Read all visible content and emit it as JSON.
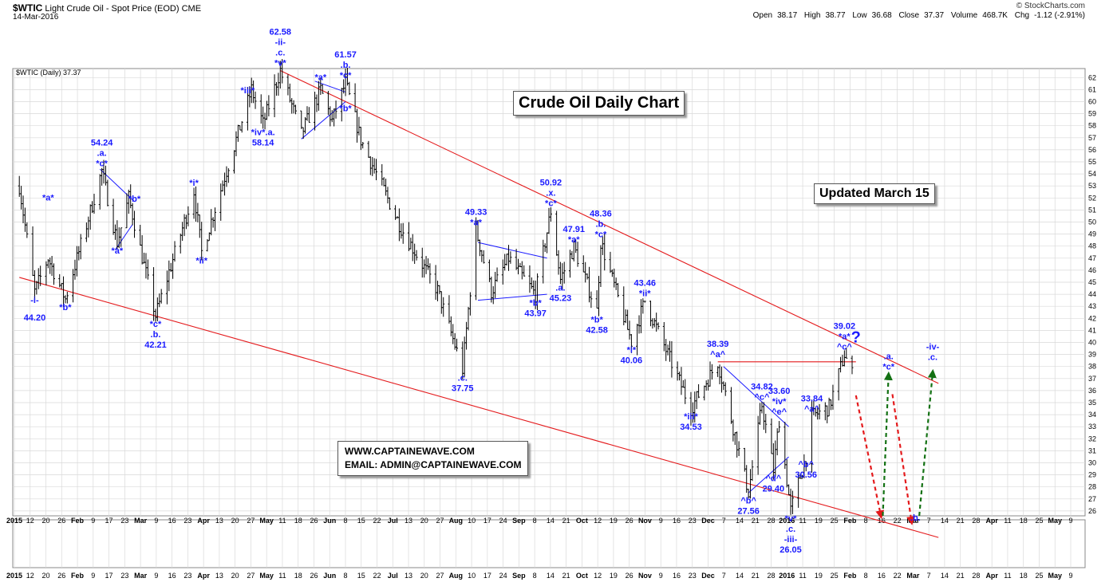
{
  "header": {
    "symbol": "$WTIC",
    "description": "Light Crude Oil - Spot Price (EOD)",
    "exchange": "CME",
    "date": "14-Mar-2016",
    "copyright": "© StockCharts.com",
    "open_label": "Open",
    "open": "38.17",
    "high_label": "High",
    "high": "38.77",
    "low_label": "Low",
    "low": "36.68",
    "close_label": "Close",
    "close": "37.37",
    "volume_label": "Volume",
    "volume": "468.7K",
    "chg_label": "Chg",
    "chg": "-1.12 (-2.91%)"
  },
  "legend": "$WTIC (Daily) 37.37",
  "title_box": "Crude Oil Daily Chart",
  "updated_box": "Updated March 15",
  "contact": {
    "website": "WWW.CAPTAINEWAVE.COM",
    "email": "EMAIL: ADMIN@CAPTAINEWAVE.COM"
  },
  "colors": {
    "bars": "#000000",
    "labels": "#1a1aff",
    "channel": "#e41a1c",
    "triangle": "#1a1aff",
    "projection_down": "#e41a1c",
    "projection_up": "#137113",
    "grid": "#d9d9d9"
  },
  "chart_data": {
    "type": "ohlc",
    "ylim": [
      26,
      62
    ],
    "yticks": [
      26,
      27,
      28,
      29,
      30,
      31,
      32,
      33,
      34,
      35,
      36,
      37,
      38,
      39,
      40,
      41,
      42,
      43,
      44,
      45,
      46,
      47,
      48,
      49,
      50,
      51,
      52,
      53,
      54,
      55,
      56,
      57,
      58,
      59,
      60,
      61,
      62
    ],
    "xticks": [
      "2015",
      "12",
      "20",
      "26",
      "Feb",
      "9",
      "17",
      "23",
      "Mar",
      "9",
      "16",
      "23",
      "Apr",
      "13",
      "20",
      "27",
      "May",
      "11",
      "18",
      "26",
      "Jun",
      "8",
      "15",
      "22",
      "Jul",
      "13",
      "20",
      "27",
      "Aug",
      "10",
      "17",
      "24",
      "Sep",
      "8",
      "14",
      "21",
      "Oct",
      "12",
      "19",
      "26",
      "Nov",
      "9",
      "16",
      "23",
      "Dec",
      "7",
      "14",
      "21",
      "28",
      "2016",
      "11",
      "19",
      "25",
      "Feb",
      "8",
      "16",
      "22",
      "Mar",
      "7",
      "14",
      "21",
      "28",
      "Apr",
      "11",
      "18",
      "25",
      "May",
      "9"
    ],
    "pivots": [
      {
        "date": "2015-01-05",
        "price": 53.0
      },
      {
        "date": "2015-01-13",
        "price": 44.2
      },
      {
        "date": "2015-01-20",
        "price": 47.0
      },
      {
        "date": "2015-01-29",
        "price": 43.6
      },
      {
        "date": "2015-02-17",
        "price": 54.24
      },
      {
        "date": "2015-02-25",
        "price": 48.3
      },
      {
        "date": "2015-03-03",
        "price": 52.0
      },
      {
        "date": "2015-03-17",
        "price": 42.21
      },
      {
        "date": "2015-04-06",
        "price": 52.6
      },
      {
        "date": "2015-04-10",
        "price": 47.5
      },
      {
        "date": "2015-05-06",
        "price": 61.0
      },
      {
        "date": "2015-05-12",
        "price": 58.14
      },
      {
        "date": "2015-05-21",
        "price": 62.58
      },
      {
        "date": "2015-06-01",
        "price": 57.3
      },
      {
        "date": "2015-06-11",
        "price": 61.0
      },
      {
        "date": "2015-06-17",
        "price": 58.4
      },
      {
        "date": "2015-06-24",
        "price": 61.57
      },
      {
        "date": "2015-07-02",
        "price": 56.8
      },
      {
        "date": "2015-07-23",
        "price": 49.5
      },
      {
        "date": "2015-08-11",
        "price": 44.3
      },
      {
        "date": "2015-08-24",
        "price": 37.75
      },
      {
        "date": "2015-08-31",
        "price": 49.33
      },
      {
        "date": "2015-09-08",
        "price": 44.2
      },
      {
        "date": "2015-09-17",
        "price": 47.0
      },
      {
        "date": "2015-10-01",
        "price": 43.97
      },
      {
        "date": "2015-10-09",
        "price": 50.92
      },
      {
        "date": "2015-10-14",
        "price": 45.23
      },
      {
        "date": "2015-10-21",
        "price": 47.91
      },
      {
        "date": "2015-11-02",
        "price": 42.58
      },
      {
        "date": "2015-11-04",
        "price": 48.36
      },
      {
        "date": "2015-11-20",
        "price": 40.06
      },
      {
        "date": "2015-11-27",
        "price": 43.46
      },
      {
        "date": "2015-12-21",
        "price": 34.53
      },
      {
        "date": "2016-01-04",
        "price": 38.39
      },
      {
        "date": "2016-01-20",
        "price": 27.56
      },
      {
        "date": "2016-01-27",
        "price": 34.82
      },
      {
        "date": "2016-02-02",
        "price": 29.4
      },
      {
        "date": "2016-02-05",
        "price": 33.6
      },
      {
        "date": "2016-02-11",
        "price": 26.05
      },
      {
        "date": "2016-02-19",
        "price": 30.56
      },
      {
        "date": "2016-02-22",
        "price": 33.84
      },
      {
        "date": "2016-03-02",
        "price": 34.6
      },
      {
        "date": "2016-03-10",
        "price": 39.02
      },
      {
        "date": "2016-03-14",
        "price": 37.37
      }
    ],
    "channel_upper": [
      {
        "date": "2015-05-21",
        "price": 62.58
      },
      {
        "date": "2016-04-28",
        "price": 36.6
      }
    ],
    "channel_lower": [
      {
        "date": "2015-01-05",
        "price": 45.4
      },
      {
        "date": "2016-04-28",
        "price": 23.8
      }
    ],
    "triangles": [
      {
        "upper": [
          {
            "date": "2015-02-16",
            "price": 54.4
          },
          {
            "date": "2015-03-06",
            "price": 51.7
          }
        ],
        "lower": [
          {
            "date": "2015-02-24",
            "price": 47.7
          },
          {
            "date": "2015-03-05",
            "price": 49.8
          }
        ]
      },
      {
        "upper": [
          {
            "date": "2015-06-08",
            "price": 61.7
          },
          {
            "date": "2015-06-24",
            "price": 60.8
          }
        ],
        "lower": [
          {
            "date": "2015-06-01",
            "price": 56.9
          },
          {
            "date": "2015-06-24",
            "price": 60.0
          }
        ]
      },
      {
        "upper": [
          {
            "date": "2015-09-01",
            "price": 48.3
          },
          {
            "date": "2015-10-07",
            "price": 47.0
          }
        ],
        "lower": [
          {
            "date": "2015-09-01",
            "price": 43.5
          },
          {
            "date": "2015-10-07",
            "price": 44.0
          }
        ]
      },
      {
        "upper": [
          {
            "date": "2016-01-07",
            "price": 38.0
          },
          {
            "date": "2016-02-10",
            "price": 33.0
          }
        ],
        "lower": [
          {
            "date": "2016-01-20",
            "price": 27.5
          },
          {
            "date": "2016-02-10",
            "price": 30.5
          }
        ]
      }
    ],
    "resistance": {
      "from": "2016-01-04",
      "to": "2016-03-16",
      "price": 38.39
    },
    "projection": [
      {
        "from": {
          "date": "2016-03-16",
          "price": 35.6
        },
        "to": {
          "date": "2016-03-29",
          "price": 25.6
        },
        "dir": "down"
      },
      {
        "from": {
          "date": "2016-03-30",
          "price": 25.6
        },
        "to": {
          "date": "2016-04-02",
          "price": 37.3
        },
        "dir": "up"
      },
      {
        "from": {
          "date": "2016-04-04",
          "price": 35.7
        },
        "to": {
          "date": "2016-04-14",
          "price": 25.1
        },
        "dir": "down"
      },
      {
        "from": {
          "date": "2016-04-18",
          "price": 25.6
        },
        "to": {
          "date": "2016-04-25",
          "price": 37.5
        },
        "dir": "up"
      }
    ],
    "annotations": [
      {
        "lines": [
          "-i-"
        ],
        "date": "2015-01-13",
        "price": 44.2,
        "pos": "below"
      },
      {
        "lines": [
          "44.20"
        ],
        "date": "2015-01-13",
        "price": 44.2,
        "pos": "below",
        "row": 2
      },
      {
        "lines": [
          "*a*"
        ],
        "date": "2015-01-20",
        "price": 51.8,
        "pos": "label"
      },
      {
        "lines": [
          "*b*"
        ],
        "date": "2015-01-29",
        "price": 43.6,
        "pos": "below"
      },
      {
        "lines": [
          "54.24",
          ".a.",
          "*c*"
        ],
        "date": "2015-02-17",
        "price": 54.24,
        "pos": "above"
      },
      {
        "lines": [
          "*a*"
        ],
        "date": "2015-02-25",
        "price": 48.3,
        "pos": "below"
      },
      {
        "lines": [
          "*b*"
        ],
        "date": "2015-03-06",
        "price": 51.7,
        "pos": "label"
      },
      {
        "lines": [
          "*c*",
          ".b.",
          "42.21"
        ],
        "date": "2015-03-17",
        "price": 42.21,
        "pos": "below"
      },
      {
        "lines": [
          "*i*"
        ],
        "date": "2015-04-06",
        "price": 53.0,
        "pos": "label"
      },
      {
        "lines": [
          "*ii*"
        ],
        "date": "2015-04-10",
        "price": 47.5,
        "pos": "below"
      },
      {
        "lines": [
          "*iii*"
        ],
        "date": "2015-05-04",
        "price": 60.7,
        "pos": "label"
      },
      {
        "lines": [
          "*iv*.a.",
          "58.14"
        ],
        "date": "2015-05-12",
        "price": 58.14,
        "pos": "below"
      },
      {
        "lines": [
          "62.58",
          "-ii-",
          ".c.",
          "*v*"
        ],
        "date": "2015-05-21",
        "price": 62.58,
        "pos": "above"
      },
      {
        "lines": [
          "*a*"
        ],
        "date": "2015-06-11",
        "price": 61.8,
        "pos": "label"
      },
      {
        "lines": [
          "*b*"
        ],
        "date": "2015-06-24",
        "price": 59.2,
        "pos": "label"
      },
      {
        "lines": [
          "61.57",
          ".b.",
          "*c*"
        ],
        "date": "2015-06-24",
        "price": 61.57,
        "pos": "above"
      },
      {
        "lines": [
          "49.33",
          "*a*"
        ],
        "date": "2015-08-31",
        "price": 49.33,
        "pos": "above"
      },
      {
        "lines": [
          ".c.",
          "37.75"
        ],
        "date": "2015-08-24",
        "price": 37.75,
        "pos": "below"
      },
      {
        "lines": [
          "*b*",
          "43.97"
        ],
        "date": "2015-10-01",
        "price": 43.97,
        "pos": "below"
      },
      {
        "lines": [
          "50.92",
          ".x.",
          "*c*"
        ],
        "date": "2015-10-09",
        "price": 50.92,
        "pos": "above"
      },
      {
        "lines": [
          "47.91",
          "*a*"
        ],
        "date": "2015-10-21",
        "price": 47.91,
        "pos": "above"
      },
      {
        "lines": [
          ".a.",
          "45.23"
        ],
        "date": "2015-10-14",
        "price": 45.23,
        "pos": "below"
      },
      {
        "lines": [
          "48.36",
          ".b.",
          "*c*"
        ],
        "date": "2015-11-04",
        "price": 48.36,
        "pos": "above"
      },
      {
        "lines": [
          "*b*",
          "42.58"
        ],
        "date": "2015-11-02",
        "price": 42.58,
        "pos": "below"
      },
      {
        "lines": [
          "43.46",
          "*ii*"
        ],
        "date": "2015-11-27",
        "price": 43.46,
        "pos": "above"
      },
      {
        "lines": [
          "*i*",
          "40.06"
        ],
        "date": "2015-11-20",
        "price": 40.06,
        "pos": "below"
      },
      {
        "lines": [
          "*iii*",
          "34.53"
        ],
        "date": "2015-12-21",
        "price": 34.53,
        "pos": "below"
      },
      {
        "lines": [
          "38.39",
          "^a^"
        ],
        "date": "2016-01-04",
        "price": 38.39,
        "pos": "above"
      },
      {
        "lines": [
          "34.82",
          "^c^"
        ],
        "date": "2016-01-27",
        "price": 34.82,
        "pos": "above"
      },
      {
        "lines": [
          "33.60",
          "*iv*",
          "^e^"
        ],
        "date": "2016-02-05",
        "price": 33.6,
        "pos": "above"
      },
      {
        "lines": [
          "^b^",
          "27.56"
        ],
        "date": "2016-01-20",
        "price": 27.56,
        "pos": "below"
      },
      {
        "lines": [
          "^d^",
          "29.40"
        ],
        "date": "2016-02-02",
        "price": 29.4,
        "pos": "below"
      },
      {
        "lines": [
          "*v*",
          ".c.",
          "-iii-",
          "26.05"
        ],
        "date": "2016-02-11",
        "price": 26.05,
        "pos": "below"
      },
      {
        "lines": [
          "33.84",
          "^a^"
        ],
        "date": "2016-02-22",
        "price": 33.84,
        "pos": "above"
      },
      {
        "lines": [
          "^b^",
          "30.56"
        ],
        "date": "2016-02-19",
        "price": 30.56,
        "pos": "below"
      },
      {
        "lines": [
          "39.02",
          "*a*",
          "^c^"
        ],
        "date": "2016-03-10",
        "price": 39.02,
        "pos": "above"
      },
      {
        "lines": [
          ".a.",
          "*c*"
        ],
        "date": "2016-04-02",
        "price": 38.6,
        "pos": "label"
      },
      {
        "lines": [
          ".b."
        ],
        "date": "2016-04-16",
        "price": 25.2,
        "pos": "label",
        "row": 2
      },
      {
        "lines": [
          "-iv-",
          ".c."
        ],
        "date": "2016-04-25",
        "price": 39.4,
        "pos": "label"
      }
    ],
    "question_mark": {
      "text": "?",
      "date": "2016-03-16",
      "price": 40.0
    }
  }
}
